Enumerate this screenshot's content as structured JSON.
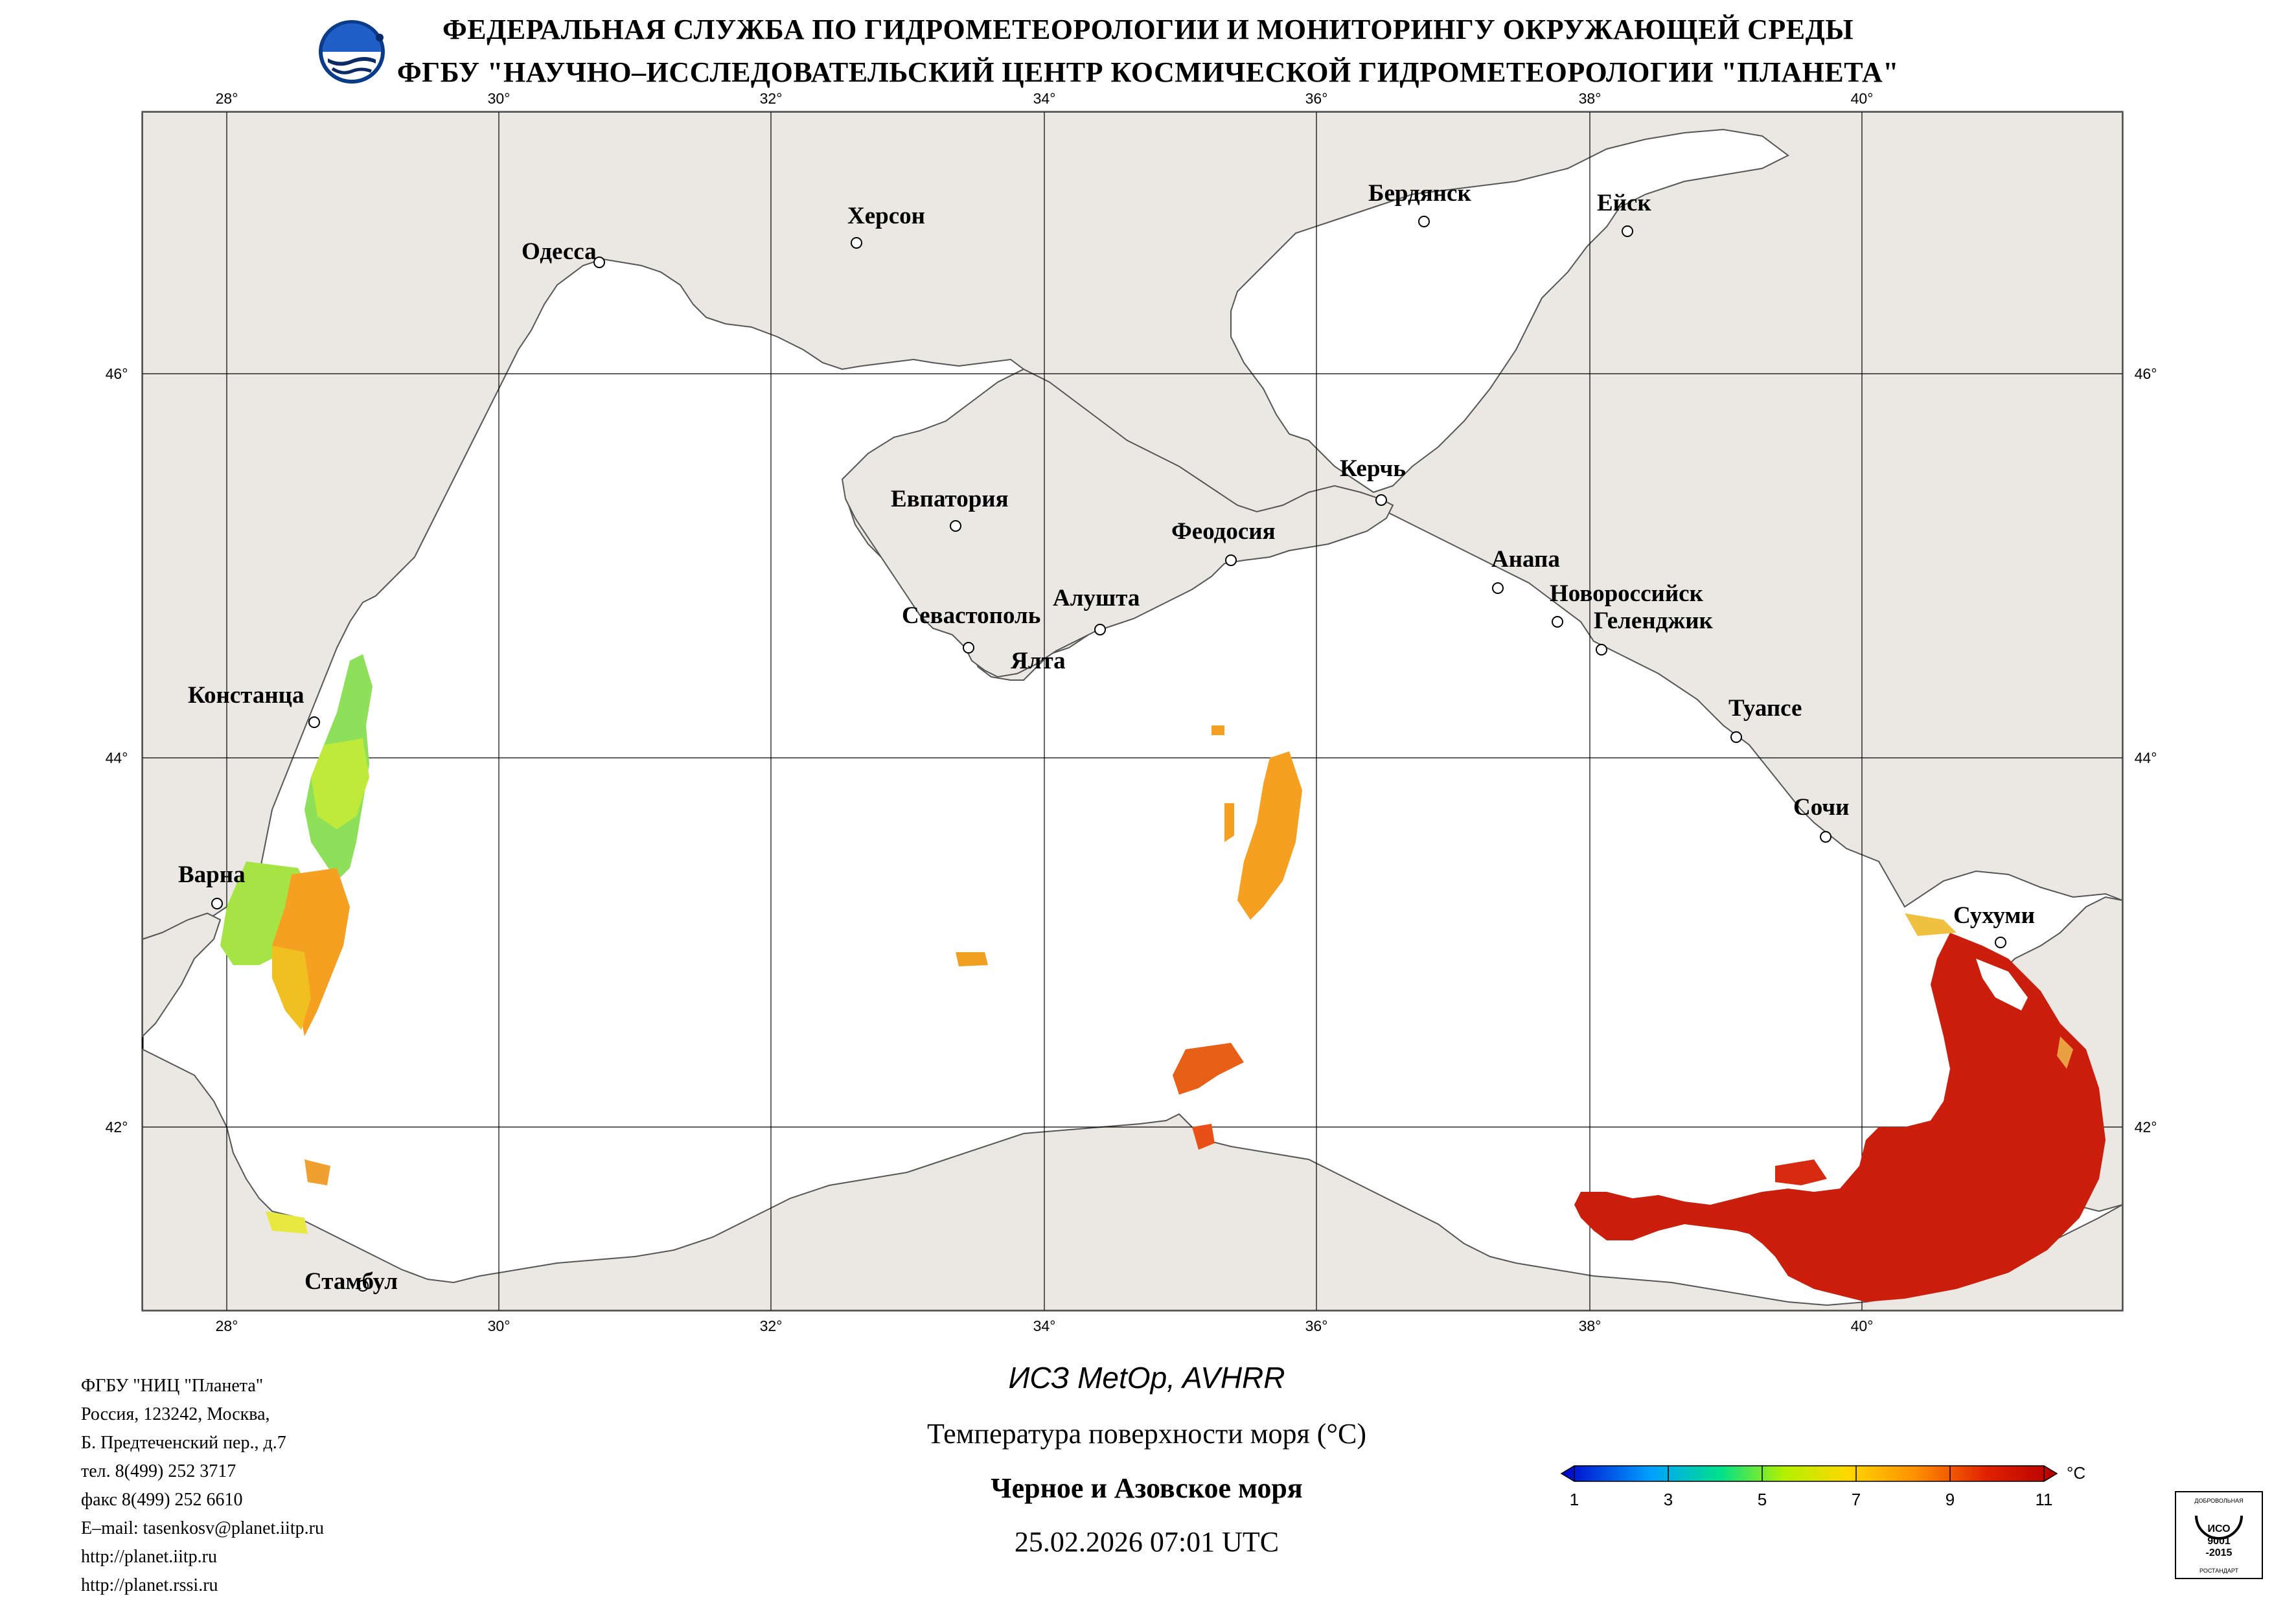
{
  "header": {
    "line1": "ФЕДЕРАЛЬНАЯ СЛУЖБА ПО ГИДРОМЕТЕОРОЛОГИИ И МОНИТОРИНГУ ОКРУЖАЮЩЕЙ СРЕДЫ",
    "line2": "ФГБУ \"НАУЧНО–ИССЛЕДОВАТЕЛЬСКИЙ ЦЕНТР КОСМИЧЕСКОЙ ГИДРОМЕТЕОРОЛОГИИ \"ПЛАНЕТА\""
  },
  "map": {
    "lon_ticks": [
      "28°",
      "30°",
      "32°",
      "34°",
      "36°",
      "38°",
      "40°"
    ],
    "lat_ticks": [
      "46°",
      "44°",
      "42°"
    ],
    "cities": {
      "odessa": "Одесса",
      "kherson": "Херсон",
      "berdyansk": "Бердянск",
      "yeysk": "Ейск",
      "evpatoria": "Евпатория",
      "sevastopol": "Севастополь",
      "alushta": "Алушта",
      "yalta": "Ялта",
      "feodosia": "Феодосия",
      "kerch": "Керчь",
      "anapa": "Анапа",
      "novorossiysk": "Новороссийск",
      "gelendzhik": "Геленджик",
      "tuapse": "Туапсе",
      "sochi": "Сочи",
      "sukhumi": "Сухуми",
      "constanta": "Констанца",
      "varna": "Варна",
      "istanbul": "Стамбул"
    },
    "colors": {
      "land": "#ebe8e4",
      "sea": "#ffffff",
      "grid": "#000000"
    }
  },
  "footer": {
    "address_lines": [
      "ФГБУ \"НИЦ \"Планета\"",
      "Россия, 123242, Москва,",
      "Б. Предтеченский пер., д.7",
      "тел. 8(499) 252 3717",
      "факс 8(499) 252 6610",
      "E–mail: tasenkosv@planet.iitp.ru",
      "http://planet.iitp.ru",
      "http://planet.rssi.ru"
    ],
    "satellite": "ИСЗ MetOp, AVHRR",
    "parameter": "Температура поверхности моря (°C)",
    "region": "Черное и Азовское моря",
    "datetime": "25.02.2026 07:01 UTC"
  },
  "colorbar": {
    "labels": [
      "1",
      "3",
      "5",
      "7",
      "9",
      "11"
    ],
    "unit": "°C",
    "colors": [
      "#0000c8",
      "#00a0ff",
      "#00e08c",
      "#b4f000",
      "#ffd700",
      "#ff8c00",
      "#e02000",
      "#b40000"
    ]
  },
  "iso_badge": {
    "top": "ДОБРОВОЛЬНАЯ",
    "iso": "ИСО",
    "num": "9001",
    "year": "-2015",
    "bottom": "РОСТАНДАРТ"
  }
}
